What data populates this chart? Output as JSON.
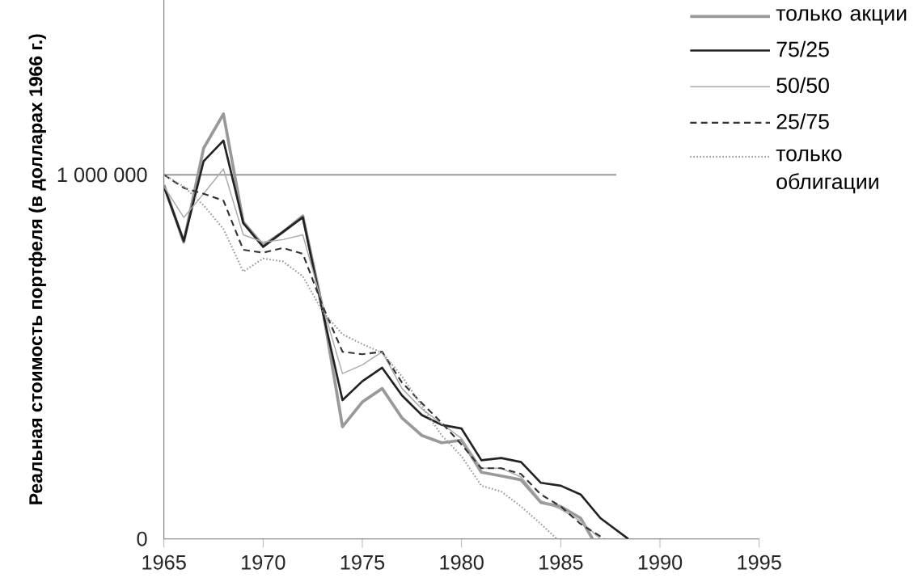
{
  "chart_data": {
    "type": "line",
    "ylabel": "Реальная стоимость портфеля (в долларах 1966 г.)",
    "xlim": [
      1965,
      1995
    ],
    "xticks": [
      1965,
      1970,
      1975,
      1980,
      1985,
      1990,
      1995
    ],
    "ylim": [
      0,
      1480000
    ],
    "yticks": [
      0,
      {
        "value": 1000000,
        "label": "1 000 000"
      }
    ],
    "grid": false,
    "legend": "top right",
    "ref_lines": [
      {
        "axis": "y",
        "value": 1000000,
        "color": "#999999"
      }
    ],
    "series": [
      {
        "name": "только акции",
        "color": "#999999",
        "line_style": "solid",
        "x": [
          1965,
          1966,
          1967,
          1968,
          1969,
          1970,
          1971,
          1972,
          1973,
          1974,
          1975,
          1976,
          1977,
          1978,
          1979,
          1980,
          1981,
          1982,
          1983,
          1984,
          1985,
          1986,
          1986.6
        ],
        "values": [
          972000,
          815000,
          1073000,
          1167000,
          870000,
          806000,
          843000,
          887000,
          632000,
          308000,
          376000,
          413000,
          332000,
          284000,
          264000,
          271000,
          183000,
          173000,
          162000,
          100000,
          89000,
          57000,
          0
        ]
      },
      {
        "name": "75/25",
        "color": "#222222",
        "line_style": "solid",
        "x": [
          1965,
          1966,
          1967,
          1968,
          1969,
          1970,
          1971,
          1972,
          1973,
          1974,
          1975,
          1976,
          1977,
          1978,
          1979,
          1980,
          1981,
          1982,
          1983,
          1984,
          1985,
          1986,
          1987,
          1988.4
        ],
        "values": [
          968000,
          818000,
          1037000,
          1094000,
          867000,
          802000,
          843000,
          883000,
          624000,
          381000,
          433000,
          470000,
          394000,
          340000,
          313000,
          303000,
          216000,
          222000,
          211000,
          154000,
          146000,
          122000,
          57000,
          0
        ]
      },
      {
        "name": "50/50",
        "color": "#aaaaaa",
        "line_style": "solid",
        "x": [
          1965,
          1966,
          1967,
          1968,
          1969,
          1970,
          1971,
          1972,
          1973,
          1974,
          1975,
          1976,
          1977,
          1978,
          1979,
          1980,
          1981,
          1982,
          1983,
          1984,
          1985,
          1986,
          1987
        ],
        "values": [
          968000,
          883000,
          948000,
          1016000,
          835000,
          815000,
          822000,
          835000,
          640000,
          454000,
          478000,
          514000,
          413000,
          357000,
          316000,
          276000,
          194000,
          194000,
          170000,
          105000,
          81000,
          49000,
          0
        ]
      },
      {
        "name": "25/75",
        "color": "#333333",
        "line_style": "dashed",
        "x": [
          1965,
          1966,
          1967,
          1968,
          1969,
          1970,
          1971,
          1972,
          1973,
          1974,
          1975,
          1976,
          1977,
          1978,
          1979,
          1980,
          1981,
          1982,
          1983,
          1984,
          1985,
          1986,
          1987.2
        ],
        "values": [
          1000000,
          964000,
          948000,
          929000,
          794000,
          786000,
          799000,
          783000,
          640000,
          514000,
          507000,
          514000,
          429000,
          373000,
          319000,
          259000,
          194000,
          194000,
          178000,
          122000,
          89000,
          41000,
          0
        ]
      },
      {
        "name": "только облигации",
        "color": "#999999",
        "line_style": "dotted",
        "x": [
          1965,
          1966,
          1967,
          1968,
          1969,
          1970,
          1971,
          1972,
          1973,
          1974,
          1975,
          1976,
          1977,
          1978,
          1979,
          1980,
          1981,
          1982,
          1983,
          1984,
          1984.8
        ],
        "values": [
          1000000,
          968000,
          916000,
          851000,
          734000,
          770000,
          762000,
          721000,
          624000,
          562000,
          535000,
          511000,
          446000,
          365000,
          284000,
          227000,
          146000,
          130000,
          89000,
          41000,
          0
        ]
      }
    ]
  }
}
